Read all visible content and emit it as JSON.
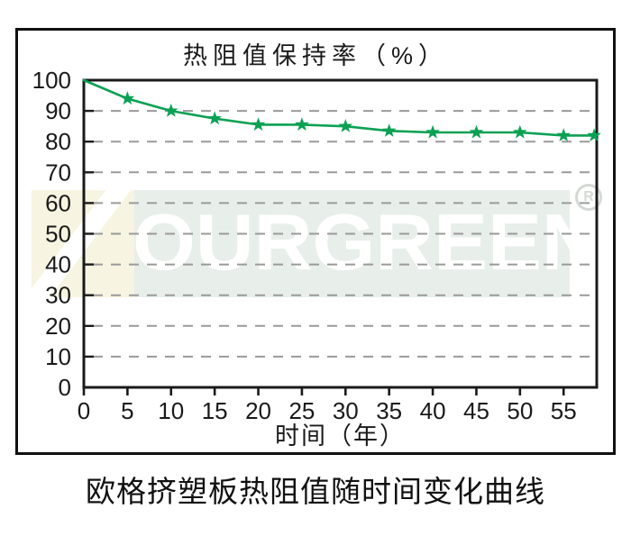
{
  "chart_title": "热阻值保持率（%）",
  "caption": "欧格挤塑板热阻值随时间变化曲线",
  "watermark": {
    "text": "OURGREEN",
    "registered_mark": "R"
  },
  "colors": {
    "line": "#0aa153",
    "grid": "#9a9a9a",
    "axis": "#1a1a1a",
    "watermark_band": "#e8efeb",
    "watermark_cream": "#f7f4e1",
    "watermark_text": "#ffffff",
    "registered_mark": "#d4d9d5"
  },
  "chart_data": {
    "type": "line",
    "title": "热阻值保持率（%）",
    "xlabel": "时间（年）",
    "ylabel": "",
    "x": [
      0,
      5,
      10,
      15,
      20,
      25,
      30,
      35,
      40,
      45,
      50,
      55,
      58.5
    ],
    "y": [
      100,
      94,
      90,
      87.5,
      85.5,
      85.5,
      85,
      83.5,
      83,
      83,
      83,
      82,
      82
    ],
    "x_ticks": [
      0,
      5,
      10,
      15,
      20,
      25,
      30,
      35,
      40,
      45,
      50,
      55
    ],
    "y_ticks": [
      0,
      10,
      20,
      30,
      40,
      50,
      60,
      70,
      80,
      90,
      100
    ],
    "xlim": [
      0,
      58.8
    ],
    "ylim": [
      0,
      100
    ],
    "grid": "horizontal-dashed",
    "marker": "star",
    "legend": "none",
    "marker_on_first_point": false
  }
}
